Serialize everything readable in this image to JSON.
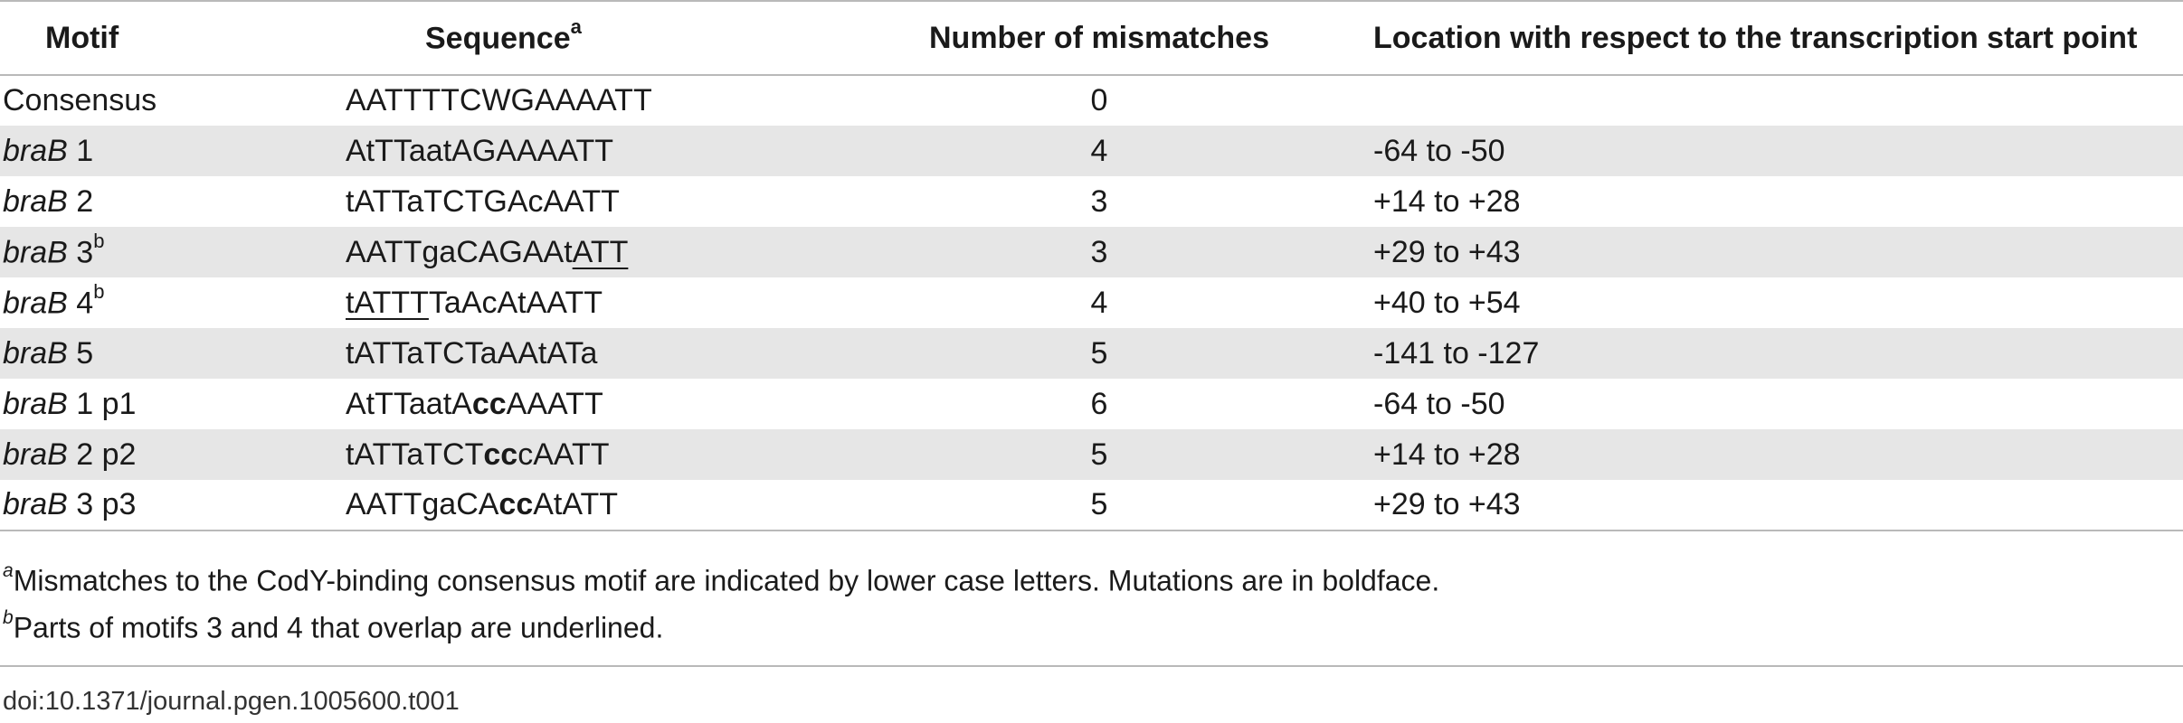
{
  "headers": {
    "motif": "Motif",
    "sequence": "Sequence",
    "sequence_sup": "a",
    "mismatches": "Number of mismatches",
    "location": "Location with respect to the transcription start point"
  },
  "rows": [
    {
      "motif_it": "",
      "motif": "Consensus",
      "motif_sup": "",
      "mismatches": "0",
      "location": ""
    },
    {
      "motif_it": "braB",
      "motif": " 1",
      "motif_sup": "",
      "mismatches": "4",
      "location": "-64 to -50"
    },
    {
      "motif_it": "braB",
      "motif": " 2",
      "motif_sup": "",
      "mismatches": "3",
      "location": "+14 to +28"
    },
    {
      "motif_it": "braB",
      "motif": " 3",
      "motif_sup": "b",
      "mismatches": "3",
      "location": "+29 to +43"
    },
    {
      "motif_it": "braB",
      "motif": " 4",
      "motif_sup": "b",
      "mismatches": "4",
      "location": "+40 to +54"
    },
    {
      "motif_it": "braB",
      "motif": " 5",
      "motif_sup": "",
      "mismatches": "5",
      "location": "-141 to -127"
    },
    {
      "motif_it": "braB",
      "motif": " 1 p1",
      "motif_sup": "",
      "mismatches": "6",
      "location": "-64 to -50"
    },
    {
      "motif_it": "braB",
      "motif": " 2 p2",
      "motif_sup": "",
      "mismatches": "5",
      "location": "+14 to +28"
    },
    {
      "motif_it": "braB",
      "motif": " 3 p3",
      "motif_sup": "",
      "mismatches": "5",
      "location": "+29 to +43"
    }
  ],
  "sequences": {
    "s0": "AATTTTCWGAAAATT",
    "s1": "AtTTaatAGAAAATT",
    "s2": "tATTaTCTGAcAATT",
    "s3_a": "AATTgaCAGAAt",
    "s3_b": "ATT",
    "s4_a": "tATTT",
    "s4_b": "TaAcAtAATT",
    "s5": "tATTaTCTaAAtATa",
    "s6_a": "AtTTaatA",
    "s6_b": "cc",
    "s6_c": "AAATT",
    "s7_a": "tATTaTCT",
    "s7_b": "cc",
    "s7_c": "cAATT",
    "s8_a": "AATTgaCA",
    "s8_b": "cc",
    "s8_c": "AtATT"
  },
  "footnotes": {
    "a_marker": "a",
    "a_text": "Mismatches to the CodY-binding consensus motif are indicated by lower case letters. Mutations are in boldface.",
    "b_marker": "b",
    "b_text": "Parts of motifs 3 and 4 that overlap are underlined."
  },
  "doi": "doi:10.1371/journal.pgen.1005600.t001",
  "colors": {
    "shaded_row": "#e6e6e6",
    "rule": "#b9b9b9",
    "text": "#1a1a1a"
  }
}
